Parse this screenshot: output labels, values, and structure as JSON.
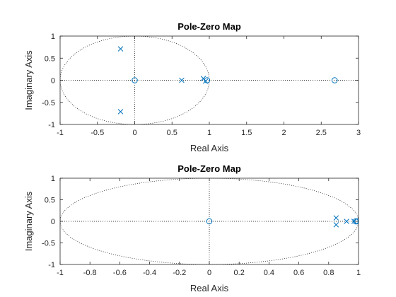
{
  "chart_data": [
    {
      "type": "scatter",
      "title": "Pole-Zero Map",
      "xlabel": "Real Axis",
      "ylabel": "Imaginary Axis",
      "xlim": [
        -1,
        3
      ],
      "ylim": [
        -1,
        1
      ],
      "xticks": [
        -1,
        -0.5,
        0,
        0.5,
        1,
        1.5,
        2,
        2.5,
        3
      ],
      "xtick_labels": [
        "-1",
        "-0.5",
        "0",
        "0.5",
        "1",
        "1.5",
        "2",
        "2.5",
        "3"
      ],
      "yticks": [
        -1,
        -0.5,
        0,
        0.5,
        1
      ],
      "ytick_labels": [
        "-1",
        "-0.5",
        "0",
        "0.5",
        "1"
      ],
      "grid": false,
      "unit_circle": true,
      "color": "#0072BD",
      "series": [
        {
          "name": "",
          "marker": "x",
          "x": [
            -0.19,
            -0.19,
            0.63,
            0.92,
            0.95
          ],
          "y": [
            0.71,
            -0.71,
            0.0,
            0.04,
            -0.02
          ]
        },
        {
          "name": "",
          "marker": "o",
          "x": [
            0.0,
            0.97,
            2.68
          ],
          "y": [
            0.0,
            0.0,
            0.0
          ]
        }
      ]
    },
    {
      "type": "scatter",
      "title": "Pole-Zero Map",
      "xlabel": "Real Axis",
      "ylabel": "Imaginary Axis",
      "xlim": [
        -1,
        1
      ],
      "ylim": [
        -1,
        1
      ],
      "xticks": [
        -1,
        -0.8,
        -0.6,
        -0.4,
        -0.2,
        0,
        0.2,
        0.4,
        0.6,
        0.8,
        1
      ],
      "xtick_labels": [
        "-1",
        "-0.8",
        "-0.6",
        "-0.4",
        "-0.2",
        "0",
        "0.2",
        "0.4",
        "0.6",
        "0.8",
        "1"
      ],
      "yticks": [
        -1,
        -0.5,
        0,
        0.5,
        1
      ],
      "ytick_labels": [
        "-1",
        "-0.5",
        "0",
        "0.5",
        "1"
      ],
      "grid": false,
      "unit_circle": true,
      "color": "#0072BD",
      "series": [
        {
          "name": "",
          "marker": "x",
          "x": [
            0.85,
            0.85,
            0.92,
            0.97
          ],
          "y": [
            0.08,
            -0.08,
            0.0,
            0.0
          ]
        },
        {
          "name": "",
          "marker": "o",
          "x": [
            0.0,
            0.98,
            0.99
          ],
          "y": [
            0.0,
            0.0,
            0.0
          ]
        }
      ]
    }
  ]
}
